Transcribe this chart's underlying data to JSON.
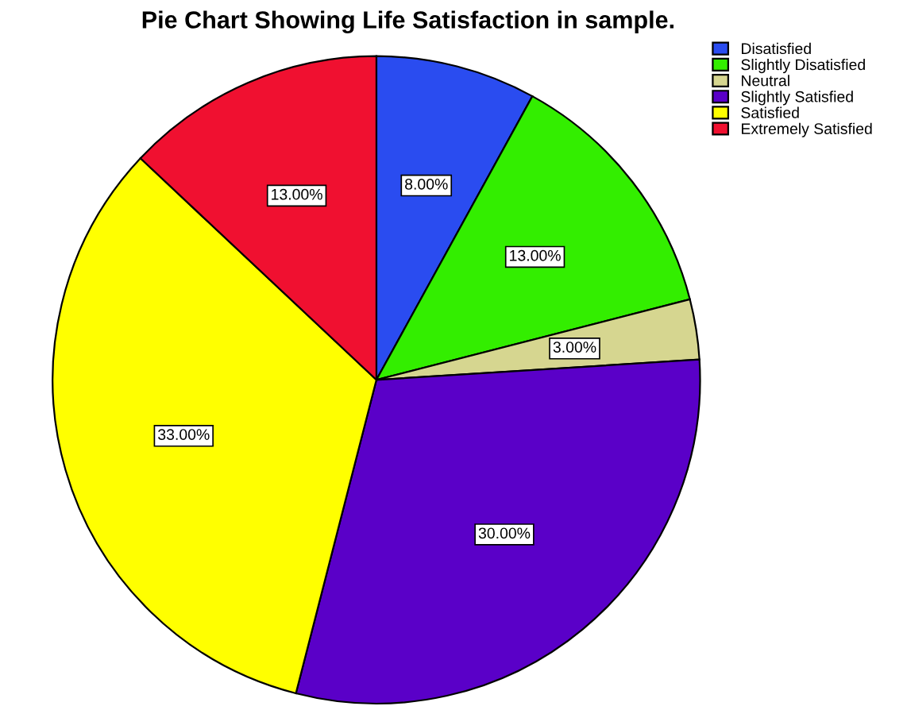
{
  "chart_data": {
    "type": "pie",
    "title": "Pie Chart Showing Life Satisfaction in sample.",
    "categories": [
      "Disatisfied",
      "Slightly Disatisfied",
      "Neutral",
      "Slightly Satisfied",
      "Satisfied",
      "Extremely Satisfied"
    ],
    "values": [
      8,
      13,
      3,
      30,
      33,
      13
    ],
    "colors": [
      "#2a4cf0",
      "#33ee00",
      "#d6d690",
      "#5a00c8",
      "#ffff00",
      "#f01030"
    ],
    "value_labels": [
      "8.00%",
      "13.00%",
      "3.00%",
      "30.00%",
      "33.00%",
      "13.00%"
    ],
    "legend": "top right"
  }
}
